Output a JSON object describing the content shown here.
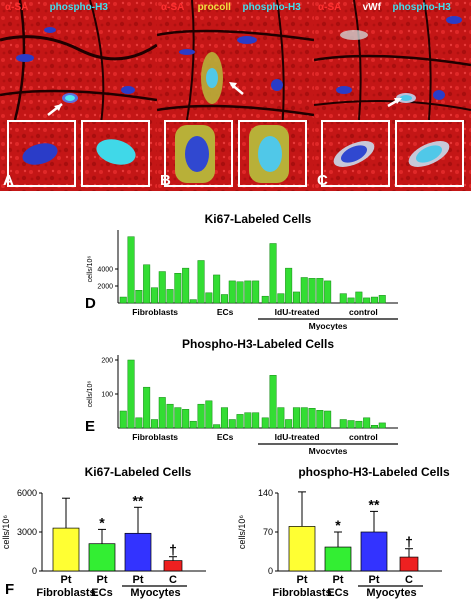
{
  "panels_top": [
    {
      "letter": "A",
      "labels": [
        {
          "text": "α-SA",
          "color": "#ff3030"
        },
        {
          "text": "phospho-H3",
          "color": "#40e0f0"
        }
      ]
    },
    {
      "letter": "B",
      "labels": [
        {
          "text": "α-SA",
          "color": "#ff3030"
        },
        {
          "text": "procoll",
          "color": "#f0e040"
        },
        {
          "text": "phospho-H3",
          "color": "#40e0f0"
        }
      ]
    },
    {
      "letter": "C",
      "labels": [
        {
          "text": "α-SA",
          "color": "#ff3030"
        },
        {
          "text": "vWf",
          "color": "#ffffff"
        },
        {
          "text": "phospho-H3",
          "color": "#40e0f0"
        }
      ]
    }
  ],
  "panel_letters": {
    "D": "D",
    "E": "E",
    "F": "F"
  },
  "chart_data": [
    {
      "type": "bar",
      "panel": "D",
      "title": "Ki67-Labeled Cells",
      "ylabel": "cells/10⁶",
      "ylim": [
        0,
        8000
      ],
      "yticks": [
        "2000",
        "4000"
      ],
      "ytick_values": [
        2000,
        4000
      ],
      "groups": [
        "Fibroblasts",
        "ECs",
        "IdU-treated",
        "control"
      ],
      "group_bar_values": [
        [
          700,
          7800,
          1500,
          4500,
          1800,
          3700,
          1600,
          3500,
          4100
        ],
        [
          400,
          5000,
          1200,
          3300,
          1000,
          2600,
          2500,
          2600,
          2600
        ],
        [
          800,
          7000,
          1100,
          4100,
          1300,
          3000,
          2900,
          2900,
          2600
        ],
        [
          1100,
          600,
          1300,
          600,
          700,
          900
        ]
      ],
      "bracket_label": "Myocytes",
      "color": "#33dd33"
    },
    {
      "type": "bar",
      "panel": "E",
      "title": "Phospho-H3-Labeled Cells",
      "ylabel": "cells/10⁶",
      "ylim": [
        0,
        200
      ],
      "yticks": [
        "100",
        "200"
      ],
      "ytick_values": [
        100,
        200
      ],
      "groups": [
        "Fibroblasts",
        "ECs",
        "IdU-treated",
        "control"
      ],
      "group_bar_values": [
        [
          50,
          200,
          30,
          120,
          25,
          90,
          70,
          60,
          55
        ],
        [
          20,
          70,
          80,
          10,
          60,
          25,
          40,
          45,
          45
        ],
        [
          30,
          155,
          60,
          25,
          60,
          60,
          58,
          52,
          50
        ],
        [
          25,
          22,
          20,
          30,
          8,
          15
        ]
      ],
      "bracket_label": "Myocytes",
      "color": "#33dd33"
    },
    {
      "type": "bar",
      "panel": "F-left",
      "title": "Ki67-Labeled Cells",
      "ylabel": "cells/10⁶",
      "ylim": [
        0,
        6000
      ],
      "yticks": [
        "0",
        "3000",
        "6000"
      ],
      "ytick_values": [
        0,
        3000,
        6000
      ],
      "categories": [
        "Pt",
        "Pt",
        "Pt",
        "C"
      ],
      "values": [
        3300,
        2100,
        2900,
        800
      ],
      "errors": [
        2300,
        1100,
        2000,
        300
      ],
      "colors": [
        "#ffff33",
        "#33ee33",
        "#3333ff",
        "#ee2020"
      ],
      "marks": [
        "",
        "*",
        "**",
        "†"
      ],
      "group_labels": [
        "Fibroblasts",
        "ECs",
        "Myocytes"
      ]
    },
    {
      "type": "bar",
      "panel": "F-right",
      "title": "phospho-H3-Labeled Cells",
      "ylabel": "cells/10⁶",
      "ylim": [
        0,
        140
      ],
      "yticks": [
        "0",
        "70",
        "140"
      ],
      "ytick_values": [
        0,
        70,
        140
      ],
      "categories": [
        "Pt",
        "Pt",
        "Pt",
        "C"
      ],
      "values": [
        80,
        43,
        70,
        25
      ],
      "errors": [
        62,
        27,
        37,
        15
      ],
      "colors": [
        "#ffff33",
        "#33ee33",
        "#3333ff",
        "#ee2020"
      ],
      "marks": [
        "",
        "*",
        "**",
        "†"
      ],
      "group_labels": [
        "Fibroblasts",
        "ECs",
        "Myocytes"
      ]
    }
  ]
}
